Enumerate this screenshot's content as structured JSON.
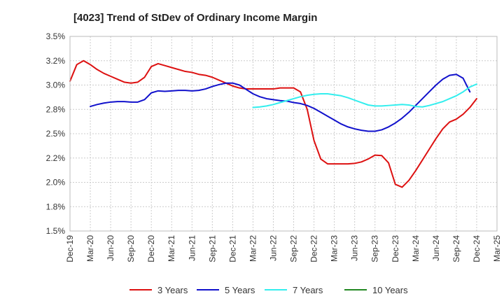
{
  "chart_data": {
    "type": "line",
    "title": "[4023]  Trend of StDev of Ordinary Income Margin",
    "xlabel": "",
    "ylabel": "",
    "x_tick_labels": [
      "Dec-19",
      "Mar-20",
      "Jun-20",
      "Sep-20",
      "Dec-20",
      "Mar-21",
      "Jun-21",
      "Sep-21",
      "Dec-21",
      "Mar-22",
      "Jun-22",
      "Sep-22",
      "Dec-22",
      "Mar-23",
      "Jun-23",
      "Sep-23",
      "Dec-23",
      "Mar-24",
      "Jun-24",
      "Sep-24",
      "Dec-24",
      "Mar-25"
    ],
    "y_tick_labels": [
      "1.5%",
      "1.8%",
      "2.0%",
      "2.2%",
      "2.5%",
      "2.8%",
      "3.0%",
      "3.2%",
      "3.5%"
    ],
    "ylim": [
      1.5,
      3.5
    ],
    "xlim_months": [
      0,
      63
    ],
    "grid": true,
    "legend_position": "bottom",
    "series": [
      {
        "name": "3 Years",
        "color": "#dd1111",
        "points": [
          [
            0,
            3.04
          ],
          [
            1,
            3.21
          ],
          [
            2,
            3.25
          ],
          [
            3,
            3.21
          ],
          [
            4,
            3.16
          ],
          [
            5,
            3.12
          ],
          [
            6,
            3.09
          ],
          [
            7,
            3.06
          ],
          [
            8,
            3.03
          ],
          [
            9,
            3.02
          ],
          [
            10,
            3.03
          ],
          [
            11,
            3.08
          ],
          [
            12,
            3.19
          ],
          [
            13,
            3.22
          ],
          [
            14,
            3.2
          ],
          [
            15,
            3.18
          ],
          [
            16,
            3.16
          ],
          [
            17,
            3.14
          ],
          [
            18,
            3.13
          ],
          [
            19,
            3.11
          ],
          [
            20,
            3.1
          ],
          [
            21,
            3.08
          ],
          [
            22,
            3.05
          ],
          [
            23,
            3.02
          ],
          [
            24,
            2.99
          ],
          [
            25,
            2.97
          ],
          [
            26,
            2.96
          ],
          [
            27,
            2.96
          ],
          [
            28,
            2.96
          ],
          [
            29,
            2.96
          ],
          [
            30,
            2.96
          ],
          [
            31,
            2.97
          ],
          [
            32,
            2.97
          ],
          [
            33,
            2.97
          ],
          [
            34,
            2.93
          ],
          [
            35,
            2.75
          ],
          [
            36,
            2.43
          ],
          [
            37,
            2.24
          ],
          [
            38,
            2.19
          ],
          [
            39,
            2.19
          ],
          [
            40,
            2.19
          ],
          [
            41,
            2.19
          ],
          [
            42,
            2.195
          ],
          [
            43,
            2.21
          ],
          [
            44,
            2.24
          ],
          [
            45,
            2.28
          ],
          [
            46,
            2.275
          ],
          [
            47,
            2.2
          ],
          [
            48,
            1.98
          ],
          [
            49,
            1.95
          ],
          [
            50,
            2.02
          ],
          [
            51,
            2.12
          ],
          [
            52,
            2.23
          ],
          [
            53,
            2.34
          ],
          [
            54,
            2.45
          ],
          [
            55,
            2.55
          ],
          [
            56,
            2.62
          ],
          [
            57,
            2.65
          ],
          [
            58,
            2.7
          ],
          [
            59,
            2.77
          ],
          [
            60,
            2.86
          ]
        ]
      },
      {
        "name": "5 Years",
        "color": "#1111cc",
        "points": [
          [
            3,
            2.78
          ],
          [
            4,
            2.8
          ],
          [
            5,
            2.815
          ],
          [
            6,
            2.825
          ],
          [
            7,
            2.83
          ],
          [
            8,
            2.83
          ],
          [
            9,
            2.825
          ],
          [
            10,
            2.825
          ],
          [
            11,
            2.85
          ],
          [
            12,
            2.92
          ],
          [
            13,
            2.94
          ],
          [
            14,
            2.935
          ],
          [
            15,
            2.94
          ],
          [
            16,
            2.945
          ],
          [
            17,
            2.945
          ],
          [
            18,
            2.94
          ],
          [
            19,
            2.945
          ],
          [
            20,
            2.96
          ],
          [
            21,
            2.985
          ],
          [
            22,
            3.005
          ],
          [
            23,
            3.02
          ],
          [
            24,
            3.02
          ],
          [
            25,
            3.0
          ],
          [
            26,
            2.955
          ],
          [
            27,
            2.91
          ],
          [
            28,
            2.88
          ],
          [
            29,
            2.86
          ],
          [
            30,
            2.85
          ],
          [
            31,
            2.84
          ],
          [
            32,
            2.835
          ],
          [
            33,
            2.82
          ],
          [
            34,
            2.81
          ],
          [
            35,
            2.79
          ],
          [
            36,
            2.76
          ],
          [
            37,
            2.72
          ],
          [
            38,
            2.68
          ],
          [
            39,
            2.64
          ],
          [
            40,
            2.6
          ],
          [
            41,
            2.57
          ],
          [
            42,
            2.55
          ],
          [
            43,
            2.535
          ],
          [
            44,
            2.525
          ],
          [
            45,
            2.525
          ],
          [
            46,
            2.54
          ],
          [
            47,
            2.57
          ],
          [
            48,
            2.61
          ],
          [
            49,
            2.66
          ],
          [
            50,
            2.72
          ],
          [
            51,
            2.79
          ],
          [
            52,
            2.86
          ],
          [
            53,
            2.93
          ],
          [
            54,
            3.0
          ],
          [
            55,
            3.06
          ],
          [
            56,
            3.1
          ],
          [
            57,
            3.11
          ],
          [
            58,
            3.07
          ],
          [
            59,
            2.93
          ]
        ]
      },
      {
        "name": "7 Years",
        "color": "#33eeee",
        "points": [
          [
            27,
            2.77
          ],
          [
            28,
            2.775
          ],
          [
            29,
            2.785
          ],
          [
            30,
            2.8
          ],
          [
            31,
            2.82
          ],
          [
            32,
            2.84
          ],
          [
            33,
            2.86
          ],
          [
            34,
            2.88
          ],
          [
            35,
            2.895
          ],
          [
            36,
            2.905
          ],
          [
            37,
            2.91
          ],
          [
            38,
            2.91
          ],
          [
            39,
            2.9
          ],
          [
            40,
            2.89
          ],
          [
            41,
            2.87
          ],
          [
            42,
            2.845
          ],
          [
            43,
            2.82
          ],
          [
            44,
            2.795
          ],
          [
            45,
            2.785
          ],
          [
            46,
            2.785
          ],
          [
            47,
            2.79
          ],
          [
            48,
            2.795
          ],
          [
            49,
            2.8
          ],
          [
            50,
            2.795
          ],
          [
            51,
            2.78
          ],
          [
            52,
            2.775
          ],
          [
            53,
            2.79
          ],
          [
            54,
            2.81
          ],
          [
            55,
            2.83
          ],
          [
            56,
            2.86
          ],
          [
            57,
            2.89
          ],
          [
            58,
            2.93
          ],
          [
            59,
            2.98
          ],
          [
            60,
            3.01
          ]
        ]
      },
      {
        "name": "10 Years",
        "color": "#228822",
        "points": []
      }
    ]
  }
}
